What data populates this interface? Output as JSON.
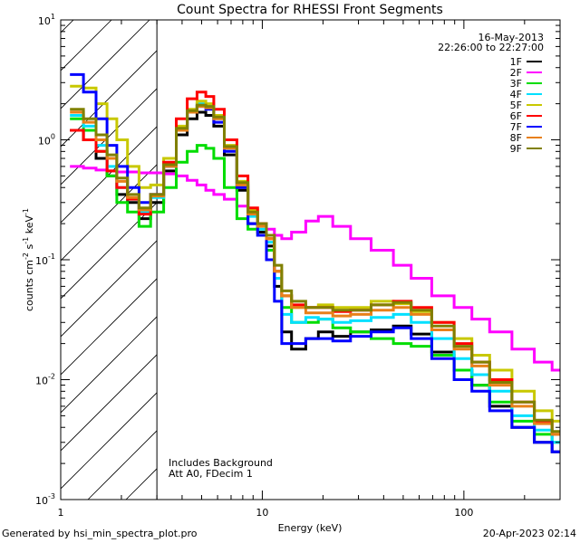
{
  "chart_data": {
    "type": "line",
    "title": "Count Spectra for RHESSI Front Segments",
    "xlabel": "Energy (keV)",
    "ylabel": "counts cm",
    "ylabel_sup1": "-2",
    "ylabel_mid": " s",
    "ylabel_sup2": "-1",
    "ylabel_end": " keV",
    "ylabel_sup3": "-1",
    "xscale": "log",
    "yscale": "log",
    "xlim": [
      1,
      300
    ],
    "ylim": [
      0.001,
      10
    ],
    "x_ticks": [
      {
        "value": 1,
        "label": "1"
      },
      {
        "value": 10,
        "label": "10"
      },
      {
        "value": 100,
        "label": "100"
      }
    ],
    "y_ticks": [
      {
        "value": 0.001,
        "base": "10",
        "exp": "-3"
      },
      {
        "value": 0.01,
        "base": "10",
        "exp": "-2"
      },
      {
        "value": 0.1,
        "base": "10",
        "exp": "-1"
      },
      {
        "value": 1,
        "base": "10",
        "exp": "0"
      },
      {
        "value": 10,
        "base": "10",
        "exp": "1"
      }
    ],
    "date": "16-May-2013",
    "time_range": "22:26:00 to 22:27:00",
    "annotation_lines": [
      "Includes Background",
      "Att A0, FDecim 1"
    ],
    "hatched_region": {
      "x_from": 1,
      "x_to": 3
    },
    "x": [
      1.2,
      1.4,
      1.6,
      1.8,
      2.0,
      2.3,
      2.6,
      3.0,
      3.5,
      4.0,
      4.5,
      5.0,
      5.5,
      6.0,
      7.0,
      8.0,
      9.0,
      10.0,
      11.0,
      12.0,
      13.0,
      15.0,
      18.0,
      20.0,
      25.0,
      30.0,
      40.0,
      50.0,
      60.0,
      80.0,
      100.0,
      120.0,
      150.0,
      200.0,
      250.0,
      300.0
    ],
    "series": [
      {
        "name": "1F",
        "color": "#000000",
        "values": [
          1.2,
          1.0,
          0.7,
          0.5,
          0.35,
          0.3,
          0.22,
          0.3,
          0.55,
          1.1,
          1.5,
          1.7,
          1.6,
          1.3,
          0.75,
          0.38,
          0.2,
          0.17,
          0.13,
          0.06,
          0.025,
          0.018,
          0.022,
          0.025,
          0.023,
          0.025,
          0.026,
          0.028,
          0.024,
          0.017,
          0.012,
          0.009,
          0.006,
          0.004,
          0.003,
          0.0025
        ]
      },
      {
        "name": "2F",
        "color": "#ff00ff",
        "values": [
          0.6,
          0.58,
          0.56,
          0.55,
          0.54,
          0.54,
          0.53,
          0.53,
          0.52,
          0.5,
          0.46,
          0.42,
          0.38,
          0.35,
          0.32,
          0.28,
          0.24,
          0.2,
          0.18,
          0.16,
          0.15,
          0.17,
          0.21,
          0.23,
          0.19,
          0.15,
          0.12,
          0.09,
          0.07,
          0.05,
          0.04,
          0.032,
          0.025,
          0.018,
          0.014,
          0.012
        ]
      },
      {
        "name": "3F",
        "color": "#00dd00",
        "values": [
          1.5,
          1.2,
          0.8,
          0.5,
          0.3,
          0.25,
          0.19,
          0.25,
          0.4,
          0.65,
          0.8,
          0.9,
          0.85,
          0.7,
          0.4,
          0.22,
          0.18,
          0.16,
          0.12,
          0.07,
          0.04,
          0.03,
          0.03,
          0.032,
          0.027,
          0.025,
          0.022,
          0.02,
          0.019,
          0.016,
          0.012,
          0.009,
          0.0065,
          0.0045,
          0.0035,
          0.003
        ]
      },
      {
        "name": "4F",
        "color": "#00e0ff",
        "values": [
          1.6,
          1.3,
          0.9,
          0.6,
          0.4,
          0.32,
          0.25,
          0.33,
          0.6,
          1.2,
          1.7,
          2.0,
          1.9,
          1.5,
          0.85,
          0.42,
          0.23,
          0.18,
          0.14,
          0.07,
          0.035,
          0.03,
          0.033,
          0.032,
          0.03,
          0.031,
          0.033,
          0.035,
          0.03,
          0.022,
          0.015,
          0.011,
          0.008,
          0.005,
          0.0038,
          0.003
        ]
      },
      {
        "name": "5F",
        "color": "#c8c800",
        "values": [
          2.8,
          2.7,
          2.0,
          1.5,
          1.0,
          0.6,
          0.4,
          0.42,
          0.7,
          1.3,
          1.8,
          2.1,
          2.0,
          1.6,
          0.9,
          0.45,
          0.26,
          0.2,
          0.15,
          0.08,
          0.05,
          0.04,
          0.04,
          0.042,
          0.04,
          0.04,
          0.045,
          0.043,
          0.037,
          0.03,
          0.022,
          0.016,
          0.012,
          0.008,
          0.0055,
          0.0045
        ]
      },
      {
        "name": "6F",
        "color": "#ff0000",
        "values": [
          1.2,
          1.0,
          0.8,
          0.55,
          0.4,
          0.32,
          0.24,
          0.35,
          0.65,
          1.5,
          2.2,
          2.5,
          2.3,
          1.8,
          1.0,
          0.5,
          0.27,
          0.2,
          0.15,
          0.08,
          0.05,
          0.042,
          0.04,
          0.04,
          0.037,
          0.038,
          0.042,
          0.045,
          0.04,
          0.03,
          0.02,
          0.014,
          0.01,
          0.0065,
          0.0045,
          0.0035
        ]
      },
      {
        "name": "7F",
        "color": "#0000ff",
        "values": [
          3.5,
          2.5,
          1.5,
          0.9,
          0.6,
          0.4,
          0.3,
          0.35,
          0.6,
          1.2,
          1.7,
          1.9,
          1.8,
          1.4,
          0.8,
          0.4,
          0.2,
          0.16,
          0.1,
          0.045,
          0.02,
          0.02,
          0.022,
          0.022,
          0.021,
          0.023,
          0.025,
          0.027,
          0.022,
          0.015,
          0.01,
          0.008,
          0.0055,
          0.004,
          0.003,
          0.0025
        ]
      },
      {
        "name": "8F",
        "color": "#e8801a",
        "values": [
          1.7,
          1.4,
          1.0,
          0.7,
          0.45,
          0.33,
          0.26,
          0.34,
          0.6,
          1.2,
          1.7,
          1.9,
          1.85,
          1.5,
          0.85,
          0.42,
          0.24,
          0.19,
          0.15,
          0.08,
          0.05,
          0.04,
          0.036,
          0.036,
          0.034,
          0.035,
          0.038,
          0.04,
          0.035,
          0.026,
          0.018,
          0.013,
          0.009,
          0.006,
          0.0043,
          0.0035
        ]
      },
      {
        "name": "9F",
        "color": "#808000",
        "values": [
          1.8,
          1.5,
          1.1,
          0.75,
          0.48,
          0.35,
          0.27,
          0.35,
          0.62,
          1.25,
          1.75,
          1.95,
          1.9,
          1.55,
          0.88,
          0.44,
          0.25,
          0.2,
          0.16,
          0.09,
          0.055,
          0.045,
          0.04,
          0.04,
          0.038,
          0.038,
          0.042,
          0.044,
          0.038,
          0.028,
          0.019,
          0.014,
          0.0095,
          0.0065,
          0.0046,
          0.0037
        ]
      }
    ]
  },
  "footer": {
    "left": "Generated by hsi_min_spectra_plot.pro",
    "right": "20-Apr-2023 02:14"
  }
}
